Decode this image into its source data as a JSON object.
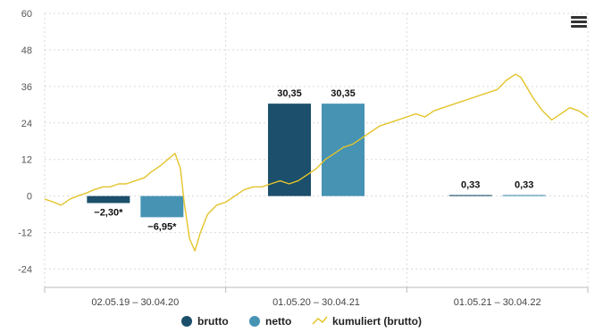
{
  "menu_icon": "hamburger-menu-icon",
  "colors": {
    "brutto": "#1b4f6b",
    "netto": "#4793b4",
    "kumuliert": "#e3c42a"
  },
  "chart_data": {
    "type": "bar",
    "ylim": [
      -30,
      60
    ],
    "yticks": [
      "60",
      "48",
      "36",
      "24",
      "12",
      "0",
      "-12",
      "-24"
    ],
    "ytick_values": [
      60,
      48,
      36,
      24,
      12,
      0,
      -12,
      -24
    ],
    "grid": true,
    "legend_position": "bottom-center",
    "categories": [
      "02.05.19 – 30.04.20",
      "01.05.20 – 30.04.21",
      "01.05.21 – 30.04.22"
    ],
    "series": [
      {
        "name": "brutto",
        "values": [
          -2.3,
          30.35,
          0.33
        ],
        "labels": [
          "−2,30*",
          "30,35",
          "0,33"
        ]
      },
      {
        "name": "netto",
        "values": [
          -6.95,
          30.35,
          0.33
        ],
        "labels": [
          "−6,95*",
          "30,35",
          "0,33"
        ]
      }
    ],
    "line_series": {
      "name": "kumuliert (brutto)",
      "points": [
        [
          0,
          -1
        ],
        [
          0.05,
          -2
        ],
        [
          0.09,
          -3
        ],
        [
          0.14,
          -1
        ],
        [
          0.18,
          0
        ],
        [
          0.23,
          1
        ],
        [
          0.27,
          2
        ],
        [
          0.32,
          3
        ],
        [
          0.36,
          3
        ],
        [
          0.41,
          4
        ],
        [
          0.45,
          4
        ],
        [
          0.5,
          5
        ],
        [
          0.55,
          6
        ],
        [
          0.59,
          8
        ],
        [
          0.64,
          10
        ],
        [
          0.68,
          12
        ],
        [
          0.72,
          14
        ],
        [
          0.75,
          9
        ],
        [
          0.77,
          -2
        ],
        [
          0.8,
          -14
        ],
        [
          0.83,
          -18
        ],
        [
          0.86,
          -12
        ],
        [
          0.9,
          -6
        ],
        [
          0.95,
          -3
        ],
        [
          1,
          -2
        ],
        [
          1.05,
          0
        ],
        [
          1.1,
          2
        ],
        [
          1.15,
          3
        ],
        [
          1.2,
          3
        ],
        [
          1.25,
          4
        ],
        [
          1.3,
          5
        ],
        [
          1.35,
          4
        ],
        [
          1.4,
          5
        ],
        [
          1.45,
          7
        ],
        [
          1.5,
          9
        ],
        [
          1.55,
          12
        ],
        [
          1.6,
          14
        ],
        [
          1.65,
          16
        ],
        [
          1.7,
          17
        ],
        [
          1.75,
          19
        ],
        [
          1.8,
          21
        ],
        [
          1.85,
          23
        ],
        [
          1.9,
          24
        ],
        [
          1.95,
          25
        ],
        [
          2,
          26
        ],
        [
          2.05,
          27
        ],
        [
          2.1,
          26
        ],
        [
          2.15,
          28
        ],
        [
          2.2,
          29
        ],
        [
          2.25,
          30
        ],
        [
          2.3,
          31
        ],
        [
          2.35,
          32
        ],
        [
          2.4,
          33
        ],
        [
          2.45,
          34
        ],
        [
          2.5,
          35
        ],
        [
          2.55,
          38
        ],
        [
          2.6,
          40
        ],
        [
          2.63,
          39
        ],
        [
          2.66,
          36
        ],
        [
          2.7,
          32
        ],
        [
          2.75,
          28
        ],
        [
          2.8,
          25
        ],
        [
          2.85,
          27
        ],
        [
          2.9,
          29
        ],
        [
          2.95,
          28
        ],
        [
          3,
          26
        ]
      ]
    },
    "legend": [
      "brutto",
      "netto",
      "kumuliert (brutto)"
    ]
  }
}
